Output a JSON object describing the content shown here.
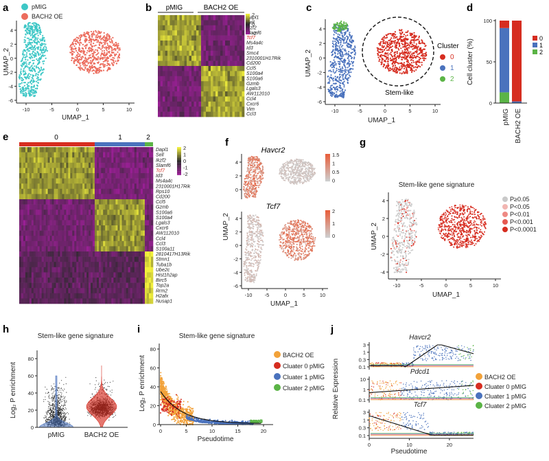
{
  "colors": {
    "pmig": "#3ec7c6",
    "bach2": "#ec6c5d",
    "cl0": "#d62d20",
    "cl1": "#4a72bd",
    "cl2": "#5bb446",
    "orange": "#f2a23a",
    "grey": "#c9c9c9",
    "hm_hi": "#f2f03c",
    "hm_lo": "#9b1f96",
    "hm_mid": "#2a2a2a"
  },
  "panels": {
    "a": {
      "label": "a",
      "legend": [
        "pMIG",
        "BACH2 OE"
      ],
      "xlabel": "UMAP_1",
      "ylabel": "UMAP_2",
      "xticks": [
        "-10",
        "-5",
        "0",
        "5",
        "10"
      ],
      "yticks": [
        "4",
        "2",
        "0",
        "-2",
        "-4",
        "-6"
      ]
    },
    "b": {
      "label": "b",
      "groups": [
        "pMIG",
        "BACH2 OE"
      ],
      "genes": [
        "Dapl1",
        "Sell",
        "Ikzf2",
        "Slamf6",
        "Tcf7",
        "Ms4a4c",
        "Id3",
        "Smc4",
        "2310001H17Rik",
        "Cd200",
        "Ccl5",
        "S100a4",
        "S100a6",
        "Gzmb",
        "Lgals3",
        "AW112010",
        "Ccl4",
        "Cxcr6",
        "Vim",
        "Ccl3"
      ],
      "highlight": "Tcf7",
      "scale": [
        "2",
        "0",
        "-2"
      ]
    },
    "c": {
      "label": "c",
      "xlabel": "UMAP_1",
      "ylabel": "UMAP_2",
      "xticks": [
        "-10",
        "-5",
        "0",
        "5",
        "10"
      ],
      "yticks": [
        "4",
        "2",
        "0",
        "-2",
        "-4",
        "-6"
      ],
      "legend_title": "Cluster",
      "legend": [
        "0",
        "1",
        "2"
      ],
      "annotation": "Stem-like"
    },
    "d": {
      "label": "d",
      "ylabel": "Cell cluster (%)",
      "yticks": [
        "100",
        "50",
        "0"
      ],
      "categories": [
        "pMIG",
        "BACH2 OE"
      ],
      "legend": [
        "0",
        "1",
        "2"
      ]
    },
    "e": {
      "label": "e",
      "clusters": [
        "0",
        "1",
        "2"
      ],
      "genes": [
        "Dapl1",
        "Sell",
        "Ikzf2",
        "Slamf6",
        "Tcf7",
        "Id3",
        "Ms4a4c",
        "2310001H17Rik",
        "Rps10",
        "Cd200",
        "Ccl5",
        "Gzmb",
        "S100a6",
        "S100a4",
        "Lgals3",
        "Cxcr6",
        "AW112010",
        "Ccl4",
        "Ccl3",
        "S100a11",
        "2810417H13Rik",
        "Stmn1",
        "Tuba1b",
        "Ube2c",
        "Hist1h2ap",
        "Birc5",
        "Top2a",
        "Rrm2",
        "H2afx",
        "Nusap1"
      ],
      "highlight": "Tcf7",
      "scale": [
        "2",
        "1",
        "0",
        "-1",
        "-2"
      ]
    },
    "f": {
      "label": "f",
      "gene1": "Havcr2",
      "gene2": "Tcf7",
      "scale1": [
        "1.5",
        "1",
        "0.5",
        "0"
      ],
      "scale2": [
        "2",
        "1",
        "0"
      ],
      "xlabel": "UMAP_1",
      "ylabel": "UMAP_2",
      "xticks": [
        "-10",
        "-5",
        "0",
        "5",
        "10"
      ],
      "yticks_top": [
        "4",
        "2",
        "0"
      ],
      "yticks_bottom": [
        "4",
        "2",
        "0",
        "-2",
        "-4",
        "-6"
      ]
    },
    "g": {
      "label": "g",
      "title": "Stem-like gene signature",
      "xlabel": "UMAP_1",
      "ylabel": "UMAP_2",
      "xticks": [
        "-10",
        "-5",
        "0",
        "5",
        "10"
      ],
      "yticks": [
        "4",
        "2",
        "0",
        "-2",
        "-4"
      ],
      "legend": [
        "P≥0.05",
        "P<0.05",
        "P<0.01",
        "P<0.001",
        "P<0.0001"
      ]
    },
    "h": {
      "label": "h",
      "title": "Stem-like gene signature",
      "ylabel": "Log₂ P enrichment",
      "yticks": [
        "80",
        "60",
        "40",
        "20",
        "0"
      ],
      "categories": [
        "pMIG",
        "BACH2 OE"
      ]
    },
    "i": {
      "label": "i",
      "title": "Stem-like gene signature",
      "ylabel": "Log₂ P enrichment",
      "xlabel": "Pseudotime",
      "xticks": [
        "0",
        "5",
        "10",
        "15",
        "20"
      ],
      "yticks": [
        "80",
        "60",
        "40",
        "20",
        "0"
      ],
      "legend": [
        "BACH2 OE",
        "Cluater 0 pMIG",
        "Cluater 1 pMIG",
        "Cluater 2 pMIG"
      ]
    },
    "j": {
      "label": "j",
      "genes": [
        "Havcr2",
        "Pdcd1",
        "Tcf7"
      ],
      "yticks1": [
        "3",
        "1",
        "0.3",
        "0.1"
      ],
      "yticks2": [
        "10",
        "1",
        "0.1"
      ],
      "yticks3": [
        "3",
        "1",
        "0.3",
        "0.1"
      ],
      "ylabel": "Relative Expression",
      "xlabel": "Pseudotime",
      "xticks": [
        "0",
        "10",
        "20"
      ],
      "legend": [
        "BACH2 OE",
        "Cluater 0 pMIG",
        "Cluater 1 pMIG",
        "Cluater 2 pMIG"
      ]
    }
  },
  "chart_data": [
    {
      "type": "bar",
      "title": "",
      "ylabel": "Cell cluster (%)",
      "categories": [
        "pMIG",
        "BACH2 OE"
      ],
      "series": [
        {
          "name": "2",
          "values": [
            13,
            0
          ]
        },
        {
          "name": "1",
          "values": [
            78,
            2
          ]
        },
        {
          "name": "0",
          "values": [
            9,
            98
          ]
        }
      ],
      "ylim": [
        0,
        100
      ]
    }
  ]
}
